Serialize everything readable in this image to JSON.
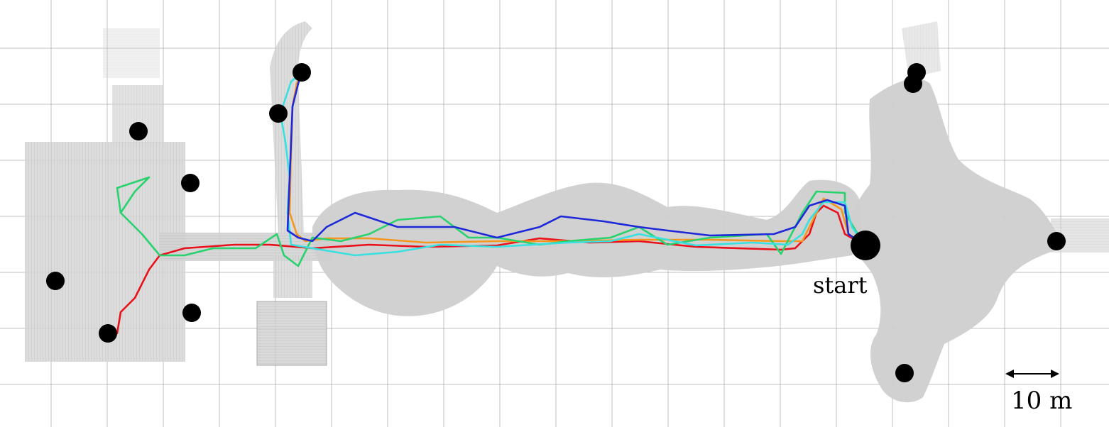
{
  "labels": {
    "start": "start",
    "scale": "10 m"
  },
  "colors": {
    "background": "#ffffff",
    "grid": "#8c8c8c",
    "point_cloud": "#c4c4c4",
    "point_cloud_edge": "#a9a9a9",
    "marker": "#000000",
    "paths": [
      "#e8101a",
      "#f5961e",
      "#28d26e",
      "#38e0e0",
      "#1e28d8"
    ]
  },
  "legend": {
    "path_colors": [
      "red",
      "orange",
      "green",
      "cyan",
      "blue"
    ]
  }
}
